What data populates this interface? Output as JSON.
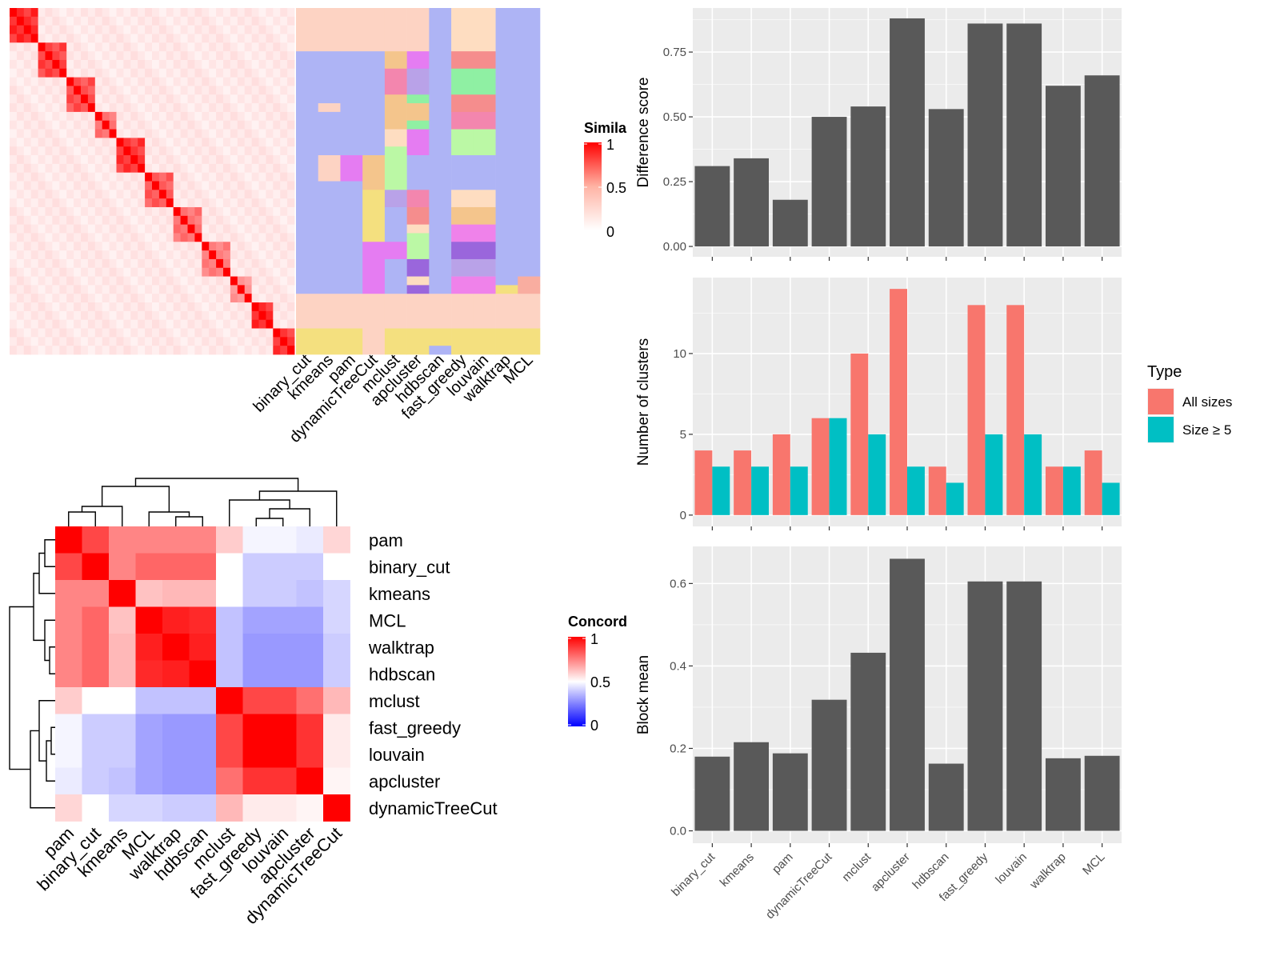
{
  "methods_ordered_top": [
    "binary_cut",
    "kmeans",
    "pam",
    "dynamicTreeCut",
    "mclust",
    "apcluster",
    "hdbscan",
    "fast_greedy",
    "louvain",
    "walktrap",
    "MCL"
  ],
  "similarity_heatmap": {
    "legend_title": "Simila",
    "legend_ticks": [
      "1",
      "0.5",
      "0"
    ],
    "n_terms": 40,
    "clusters": [
      {
        "start": 0,
        "end": 4,
        "strength": 0.9
      },
      {
        "start": 4,
        "end": 8,
        "strength": 0.8
      },
      {
        "start": 8,
        "end": 12,
        "strength": 0.75
      },
      {
        "start": 12,
        "end": 15,
        "strength": 0.6
      },
      {
        "start": 15,
        "end": 19,
        "strength": 0.85
      },
      {
        "start": 19,
        "end": 23,
        "strength": 0.7
      },
      {
        "start": 23,
        "end": 27,
        "strength": 0.6
      },
      {
        "start": 27,
        "end": 31,
        "strength": 0.55
      },
      {
        "start": 31,
        "end": 34,
        "strength": 0.45
      },
      {
        "start": 34,
        "end": 37,
        "strength": 0.9
      },
      {
        "start": 37,
        "end": 40,
        "strength": 0.85
      }
    ]
  },
  "assignment_matrix": {
    "columns": [
      "binary_cut",
      "kmeans",
      "pam",
      "dynamicTreeCut",
      "mclust",
      "apcluster",
      "hdbscan",
      "fast_greedy",
      "louvain",
      "walktrap",
      "MCL"
    ],
    "n_rows": 40,
    "palette": {
      "A": "#fdd3c3",
      "B": "#aeb4f5",
      "C": "#f4e07f",
      "D": "#e57cf2",
      "E": "#f4c58c",
      "F": "#f58d8d",
      "G": "#8ff0a3",
      "H": "#f386ae",
      "I": "#b9a2e8",
      "J": "#feddc1",
      "K": "#bbf8a5",
      "L": "#9a66dc",
      "M": "#ef82ea",
      "N": "#f9ada0"
    },
    "column_segments": [
      [
        [
          "A",
          0,
          5
        ],
        [
          "B",
          5,
          33
        ],
        [
          "A",
          33,
          37
        ],
        [
          "C",
          37,
          40
        ]
      ],
      [
        [
          "A",
          0,
          5
        ],
        [
          "B",
          5,
          11
        ],
        [
          "A",
          11,
          12
        ],
        [
          "B",
          12,
          17
        ],
        [
          "A",
          17,
          20
        ],
        [
          "B",
          20,
          33
        ],
        [
          "A",
          33,
          37
        ],
        [
          "C",
          37,
          40
        ]
      ],
      [
        [
          "A",
          0,
          5
        ],
        [
          "B",
          5,
          17
        ],
        [
          "D",
          17,
          20
        ],
        [
          "B",
          20,
          33
        ],
        [
          "A",
          33,
          37
        ],
        [
          "C",
          37,
          40
        ]
      ],
      [
        [
          "A",
          0,
          5
        ],
        [
          "B",
          5,
          17
        ],
        [
          "E",
          17,
          21
        ],
        [
          "C",
          21,
          27
        ],
        [
          "D",
          27,
          33
        ],
        [
          "A",
          33,
          40
        ]
      ],
      [
        [
          "A",
          0,
          5
        ],
        [
          "E",
          5,
          7
        ],
        [
          "H",
          7,
          10
        ],
        [
          "E",
          10,
          14
        ],
        [
          "J",
          14,
          16
        ],
        [
          "K",
          16,
          21
        ],
        [
          "I",
          21,
          23
        ],
        [
          "B",
          23,
          27
        ],
        [
          "D",
          27,
          29
        ],
        [
          "B",
          29,
          33
        ],
        [
          "A",
          33,
          37
        ],
        [
          "C",
          37,
          40
        ]
      ],
      [
        [
          "A",
          0,
          5
        ],
        [
          "D",
          5,
          7
        ],
        [
          "I",
          7,
          10
        ],
        [
          "G",
          10,
          11
        ],
        [
          "E",
          11,
          13
        ],
        [
          "G",
          13,
          14
        ],
        [
          "D",
          14,
          17
        ],
        [
          "B",
          17,
          20
        ],
        [
          "B",
          20,
          21
        ],
        [
          "H",
          21,
          23
        ],
        [
          "F",
          23,
          25
        ],
        [
          "J",
          25,
          26
        ],
        [
          "K",
          26,
          29
        ],
        [
          "L",
          29,
          31
        ],
        [
          "J",
          31,
          32
        ],
        [
          "L",
          32,
          33
        ],
        [
          "A",
          33,
          37
        ],
        [
          "C",
          37,
          40
        ]
      ],
      [
        [
          "B",
          0,
          33
        ],
        [
          "A",
          33,
          37
        ],
        [
          "C",
          37,
          39
        ],
        [
          "B",
          39,
          40
        ]
      ],
      [
        [
          "J",
          0,
          5
        ],
        [
          "F",
          5,
          7
        ],
        [
          "G",
          7,
          10
        ],
        [
          "F",
          10,
          12
        ],
        [
          "H",
          12,
          14
        ],
        [
          "K",
          14,
          17
        ],
        [
          "B",
          17,
          20
        ],
        [
          "B",
          20,
          21
        ],
        [
          "J",
          21,
          23
        ],
        [
          "E",
          23,
          25
        ],
        [
          "M",
          25,
          27
        ],
        [
          "L",
          27,
          29
        ],
        [
          "I",
          29,
          31
        ],
        [
          "M",
          31,
          33
        ],
        [
          "A",
          33,
          37
        ],
        [
          "C",
          37,
          40
        ]
      ],
      [
        [
          "J",
          0,
          5
        ],
        [
          "F",
          5,
          7
        ],
        [
          "G",
          7,
          10
        ],
        [
          "F",
          10,
          12
        ],
        [
          "H",
          12,
          14
        ],
        [
          "K",
          14,
          17
        ],
        [
          "B",
          17,
          20
        ],
        [
          "B",
          20,
          21
        ],
        [
          "J",
          21,
          23
        ],
        [
          "E",
          23,
          25
        ],
        [
          "M",
          25,
          27
        ],
        [
          "L",
          27,
          29
        ],
        [
          "I",
          29,
          31
        ],
        [
          "M",
          31,
          33
        ],
        [
          "A",
          33,
          37
        ],
        [
          "C",
          37,
          40
        ]
      ],
      [
        [
          "B",
          0,
          32
        ],
        [
          "C",
          32,
          33
        ],
        [
          "A",
          33,
          37
        ],
        [
          "C",
          37,
          40
        ]
      ],
      [
        [
          "B",
          0,
          31
        ],
        [
          "N",
          31,
          32
        ],
        [
          "N",
          32,
          33
        ],
        [
          "A",
          33,
          37
        ],
        [
          "C",
          37,
          40
        ]
      ]
    ]
  },
  "concordance_heatmap": {
    "legend_title": "Concord",
    "legend_ticks": [
      "1",
      "0.5",
      "0"
    ],
    "rows": [
      "pam",
      "binary_cut",
      "kmeans",
      "MCL",
      "walktrap",
      "hdbscan",
      "mclust",
      "fast_greedy",
      "louvain",
      "apcluster",
      "dynamicTreeCut"
    ],
    "values": [
      [
        1.0,
        0.86,
        0.74,
        0.74,
        0.74,
        0.74,
        0.6,
        0.48,
        0.48,
        0.46,
        0.58
      ],
      [
        0.86,
        1.0,
        0.74,
        0.8,
        0.8,
        0.8,
        0.5,
        0.4,
        0.4,
        0.4,
        0.5
      ],
      [
        0.74,
        0.74,
        1.0,
        0.62,
        0.64,
        0.64,
        0.5,
        0.4,
        0.4,
        0.38,
        0.42
      ],
      [
        0.74,
        0.8,
        0.62,
        1.0,
        0.94,
        0.92,
        0.38,
        0.32,
        0.32,
        0.32,
        0.42
      ],
      [
        0.74,
        0.8,
        0.64,
        0.94,
        1.0,
        0.94,
        0.38,
        0.3,
        0.3,
        0.3,
        0.4
      ],
      [
        0.74,
        0.8,
        0.64,
        0.92,
        0.94,
        1.0,
        0.38,
        0.3,
        0.3,
        0.3,
        0.4
      ],
      [
        0.6,
        0.5,
        0.5,
        0.38,
        0.38,
        0.38,
        1.0,
        0.86,
        0.86,
        0.78,
        0.64
      ],
      [
        0.48,
        0.4,
        0.4,
        0.32,
        0.3,
        0.3,
        0.86,
        1.0,
        1.0,
        0.9,
        0.54
      ],
      [
        0.48,
        0.4,
        0.4,
        0.32,
        0.3,
        0.3,
        0.86,
        1.0,
        1.0,
        0.9,
        0.54
      ],
      [
        0.46,
        0.4,
        0.38,
        0.32,
        0.3,
        0.3,
        0.78,
        0.9,
        0.9,
        1.0,
        0.52
      ],
      [
        0.58,
        0.5,
        0.42,
        0.42,
        0.4,
        0.4,
        0.64,
        0.54,
        0.54,
        0.52,
        1.0
      ]
    ]
  },
  "chart_data": [
    {
      "type": "bar",
      "categories": [
        "binary_cut",
        "kmeans",
        "pam",
        "dynamicTreeCut",
        "mclust",
        "apcluster",
        "hdbscan",
        "fast_greedy",
        "louvain",
        "walktrap",
        "MCL"
      ],
      "values": [
        0.31,
        0.34,
        0.18,
        0.5,
        0.54,
        0.88,
        0.53,
        0.86,
        0.86,
        0.62,
        0.66
      ],
      "title": "",
      "xlabel": "",
      "ylabel": "Difference score",
      "ylim": [
        -0.04,
        0.92
      ],
      "yticks": [
        0,
        0.25,
        0.5,
        0.75
      ],
      "yticklabels": [
        "0.00",
        "0.25",
        "0.50",
        "0.75"
      ],
      "color": "#595959",
      "grid": true
    },
    {
      "type": "bar",
      "categories": [
        "binary_cut",
        "kmeans",
        "pam",
        "dynamicTreeCut",
        "mclust",
        "apcluster",
        "hdbscan",
        "fast_greedy",
        "louvain",
        "walktrap",
        "MCL"
      ],
      "series": [
        {
          "name": "All sizes",
          "color": "#f8766d",
          "values": [
            4,
            4,
            5,
            6,
            10,
            14,
            3,
            13,
            13,
            3,
            4
          ]
        },
        {
          "name": "Size ≥ 5",
          "color": "#00bfc4",
          "values": [
            3,
            3,
            3,
            6,
            5,
            3,
            2,
            5,
            5,
            3,
            2
          ]
        }
      ],
      "title": "",
      "xlabel": "",
      "ylabel": "Number of clusters",
      "ylim": [
        -0.7,
        14.7
      ],
      "yticks": [
        0,
        5,
        10
      ],
      "yticklabels": [
        "0",
        "5",
        "10"
      ],
      "legend_title": "Type",
      "legend_position": "right",
      "grid": true
    },
    {
      "type": "bar",
      "categories": [
        "binary_cut",
        "kmeans",
        "pam",
        "dynamicTreeCut",
        "mclust",
        "apcluster",
        "hdbscan",
        "fast_greedy",
        "louvain",
        "walktrap",
        "MCL"
      ],
      "values": [
        0.18,
        0.215,
        0.188,
        0.318,
        0.432,
        0.66,
        0.163,
        0.605,
        0.605,
        0.176,
        0.182
      ],
      "title": "",
      "xlabel": "",
      "ylabel": "Block mean",
      "ylim": [
        -0.03,
        0.69
      ],
      "yticks": [
        0,
        0.2,
        0.4,
        0.6
      ],
      "yticklabels": [
        "0.0",
        "0.2",
        "0.4",
        "0.6"
      ],
      "color": "#595959",
      "grid": true
    }
  ]
}
